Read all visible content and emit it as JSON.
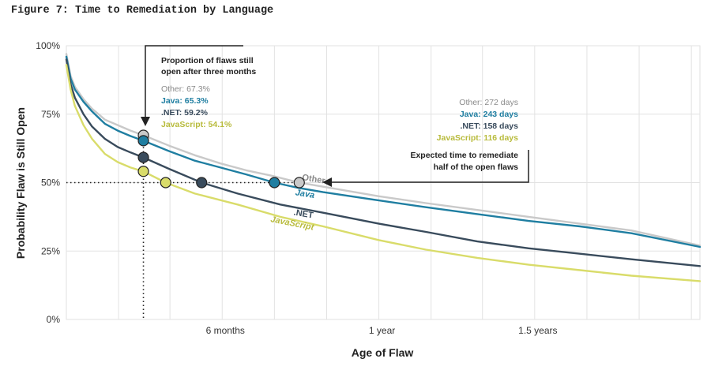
{
  "figure_title": "Figure 7: Time to Remediation by Language",
  "colors": {
    "Other": "#c9c9c9",
    "Java": "#1f7ea1",
    "NET": "#394b5c",
    "JavaScript": "#d9dc6a",
    "grid": "#e2e2e2"
  },
  "chart_data": {
    "type": "line",
    "title": "Figure 7: Time to Remediation by Language",
    "xlabel": "Age of Flaw",
    "ylabel": "Probability Flaw is Still Open",
    "x_unit": "days",
    "xlim": [
      0,
      740
    ],
    "ylim": [
      0,
      100
    ],
    "grid": true,
    "x_ticks": [
      {
        "value": 182,
        "label": "6 months"
      },
      {
        "value": 365,
        "label": "1 year"
      },
      {
        "value": 547,
        "label": "1.5 years"
      }
    ],
    "y_ticks": [
      {
        "value": 0,
        "label": "0%"
      },
      {
        "value": 25,
        "label": "25%"
      },
      {
        "value": 50,
        "label": "50%"
      },
      {
        "value": 75,
        "label": "75%"
      },
      {
        "value": 100,
        "label": "100%"
      }
    ],
    "x_grid_values": [
      0,
      61,
      121,
      182,
      243,
      304,
      365,
      426,
      486,
      547,
      608,
      669,
      730
    ],
    "series": [
      {
        "name": "Other",
        "key": "Other",
        "label": "Other",
        "x": [
          0,
          5,
          10,
          20,
          30,
          45,
          60,
          75,
          90,
          120,
          150,
          180,
          210,
          240,
          272,
          300,
          365,
          420,
          480,
          540,
          600,
          660,
          740
        ],
        "y": [
          97,
          89,
          85,
          80.5,
          77,
          73,
          71,
          69,
          67.3,
          63.5,
          60,
          57,
          54.5,
          52.5,
          50,
          48.5,
          45,
          42.5,
          40,
          37.5,
          35,
          32.5,
          27
        ]
      },
      {
        "name": "Java",
        "key": "Java",
        "label": "Java",
        "x": [
          0,
          5,
          10,
          20,
          30,
          45,
          60,
          75,
          90,
          120,
          150,
          180,
          210,
          243,
          272,
          300,
          365,
          420,
          480,
          540,
          600,
          660,
          740
        ],
        "y": [
          96,
          88,
          84,
          79.5,
          76,
          71.5,
          69,
          67,
          65.3,
          61.5,
          58,
          55.5,
          53,
          50,
          48,
          46.5,
          43.5,
          41,
          38.5,
          36,
          34,
          31.5,
          26.5
        ]
      },
      {
        "name": ".NET",
        "key": "NET",
        "label": ".NET",
        "x": [
          0,
          5,
          10,
          20,
          30,
          45,
          60,
          75,
          90,
          120,
          158,
          200,
          250,
          300,
          365,
          420,
          480,
          540,
          600,
          660,
          740
        ],
        "y": [
          95,
          86,
          81,
          75,
          70.5,
          66,
          63,
          61,
          59.2,
          55,
          50,
          46,
          42,
          39,
          35,
          32,
          28.5,
          26,
          24,
          22,
          19.5
        ]
      },
      {
        "name": "JavaScript",
        "key": "JavaScript",
        "label": "JavaScript",
        "x": [
          0,
          5,
          10,
          20,
          30,
          45,
          60,
          75,
          90,
          116,
          150,
          200,
          250,
          300,
          365,
          420,
          480,
          540,
          600,
          660,
          740
        ],
        "y": [
          93,
          84,
          78,
          71,
          66,
          60.5,
          57.5,
          55.5,
          54.1,
          50,
          46,
          42,
          37.5,
          34,
          29,
          25.5,
          22.5,
          20,
          18,
          16,
          14
        ]
      }
    ],
    "markers_3_months": {
      "x": 90,
      "points": [
        {
          "series": "Other",
          "y": 67.3
        },
        {
          "series": "Java",
          "y": 65.3
        },
        {
          "series": "NET",
          "y": 59.2
        },
        {
          "series": "JavaScript",
          "y": 54.1
        }
      ]
    },
    "markers_median": {
      "y": 50,
      "points": [
        {
          "series": "JavaScript",
          "x": 116
        },
        {
          "series": "NET",
          "x": 158
        },
        {
          "series": "Java",
          "x": 243
        },
        {
          "series": "Other",
          "x": 272
        }
      ]
    },
    "annotations": {
      "three_months": {
        "title_line1": "Proportion of flaws still",
        "title_line2": "open after three months",
        "lines": [
          {
            "series": "Other",
            "text": "Other: 67.3%"
          },
          {
            "series": "Java",
            "text": "Java: 65.3%"
          },
          {
            "series": "NET",
            "text": ".NET: 59.2%"
          },
          {
            "series": "JavaScript",
            "text": "JavaScript: 54.1%"
          }
        ]
      },
      "median": {
        "lines": [
          {
            "series": "Other",
            "text": "Other: 272 days"
          },
          {
            "series": "Java",
            "text": "Java: 243 days"
          },
          {
            "series": "NET",
            "text": ".NET: 158 days"
          },
          {
            "series": "JavaScript",
            "text": "JavaScript: 116 days"
          }
        ],
        "title_line1": "Expected time to remediate",
        "title_line2": "half of the open flaws"
      }
    }
  }
}
